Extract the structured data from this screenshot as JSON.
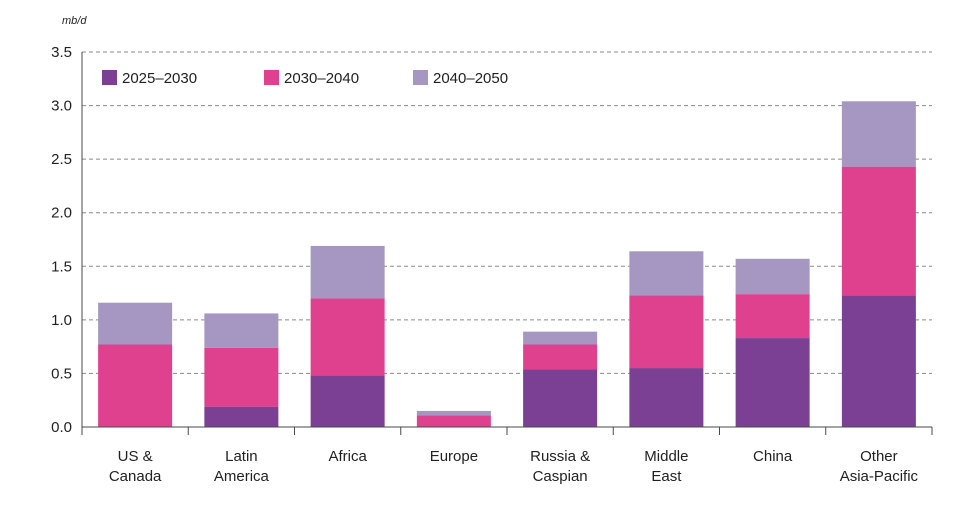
{
  "chart_data": {
    "type": "bar",
    "stacked": true,
    "ylabel": "mb/d",
    "ylim": [
      0,
      3.5
    ],
    "yticks": [
      0.0,
      0.5,
      1.0,
      1.5,
      2.0,
      2.5,
      3.0,
      3.5
    ],
    "ytick_labels": [
      "0.0",
      "0.5",
      "1.0",
      "1.5",
      "2.0",
      "2.5",
      "3.0",
      "3.5"
    ],
    "grid": "horizontal-dashed",
    "legend_position": "top-left",
    "categories": [
      [
        "US &",
        "Canada"
      ],
      [
        "Latin",
        "America"
      ],
      [
        "Africa"
      ],
      [
        "Europe"
      ],
      [
        "Russia &",
        "Caspian"
      ],
      [
        "Middle",
        "East"
      ],
      [
        "China"
      ],
      [
        "Other",
        "Asia-Pacific"
      ]
    ],
    "series": [
      {
        "name": "2025–2030",
        "color": "#7b3f94",
        "values": [
          0.0,
          0.19,
          0.48,
          0.0,
          0.54,
          0.55,
          0.83,
          1.23
        ]
      },
      {
        "name": "2030–2040",
        "color": "#e0418e",
        "values": [
          0.77,
          0.55,
          0.72,
          0.11,
          0.23,
          0.68,
          0.41,
          1.2
        ]
      },
      {
        "name": "2040–2050",
        "color": "#a596c2",
        "values": [
          0.39,
          0.32,
          0.49,
          0.04,
          0.12,
          0.41,
          0.33,
          0.61
        ]
      }
    ]
  }
}
